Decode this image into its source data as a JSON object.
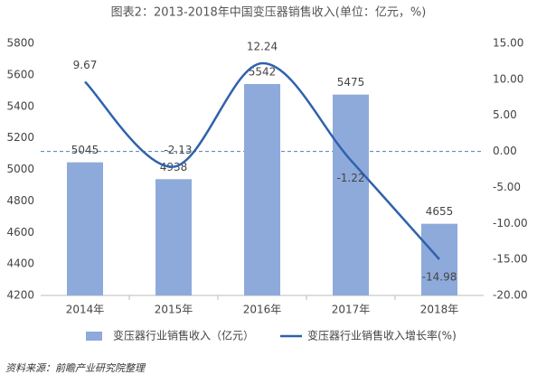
{
  "chart_data": {
    "type": "bar",
    "title": "图表2：2013-2018年中国变压器销售收入(单位：亿元，%)",
    "categories": [
      "2014年",
      "2015年",
      "2016年",
      "2017年",
      "2018年"
    ],
    "series": [
      {
        "name": "变压器行业销售收入（亿元）",
        "type": "bar",
        "color": "#8eaadb",
        "values": [
          5045,
          4938,
          5542,
          5475,
          4655
        ]
      },
      {
        "name": "变压器行业销售收入增长率(%)",
        "type": "line",
        "axis": "y2",
        "color": "#2f62ad",
        "values": [
          9.67,
          -2.13,
          12.24,
          -1.22,
          -14.98
        ],
        "value_labels": [
          "9.67",
          "-2.13",
          "12.24",
          "-1.22",
          "-14.98"
        ]
      }
    ],
    "ylim": [
      4200,
      5800
    ],
    "yticks": [
      4200,
      4400,
      4600,
      4800,
      5000,
      5200,
      5400,
      5600,
      5800
    ],
    "y2lim": [
      -20,
      15
    ],
    "y2ticks": [
      {
        "value": -20,
        "label": "-20.00"
      },
      {
        "value": -15,
        "label": "-15.00"
      },
      {
        "value": -10,
        "label": "-10.00"
      },
      {
        "value": -5,
        "label": "-5.00"
      },
      {
        "value": 0,
        "label": "0.00"
      },
      {
        "value": 5,
        "label": "5.00"
      },
      {
        "value": 10,
        "label": "10.00"
      },
      {
        "value": 15,
        "label": "15.00"
      }
    ],
    "source": "资料来源：前瞻产业研究院整理"
  }
}
